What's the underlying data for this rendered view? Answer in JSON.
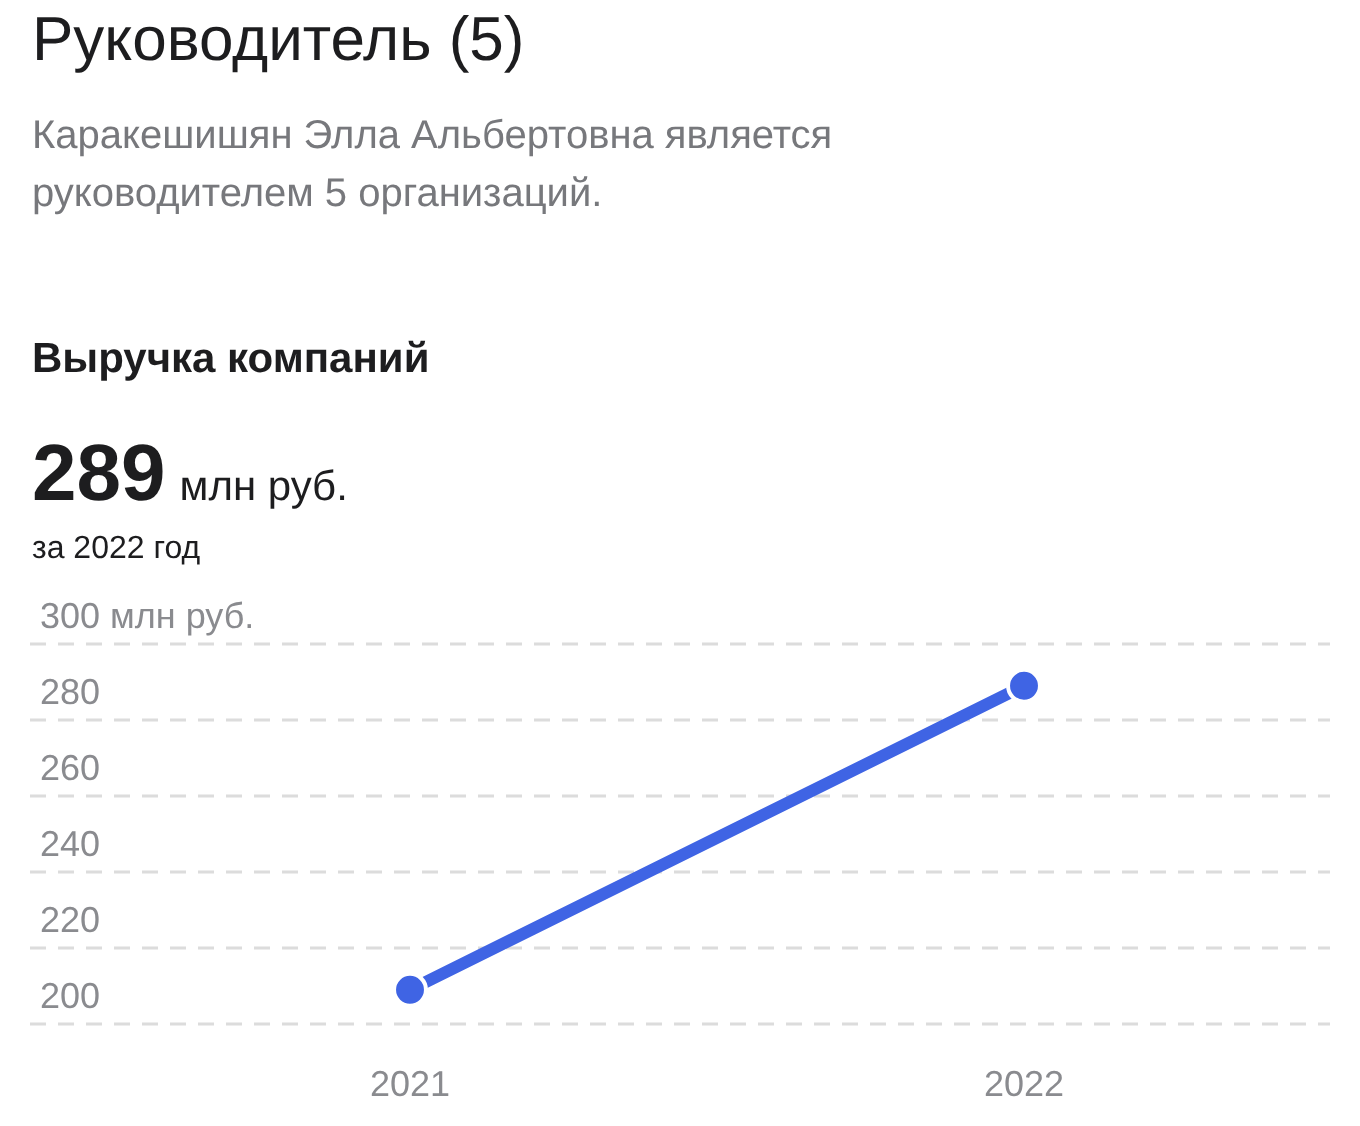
{
  "chart_data": {
    "type": "line",
    "title": "Руководитель (5)",
    "subtitle": "Каракешишян Элла Альбертовна является руководителем 5 организаций.",
    "annotations": [
      "Выручка компаний",
      "289",
      "млн руб.",
      "за 2022 год"
    ],
    "categories": [
      "2021",
      "2022"
    ],
    "series": [
      {
        "color": "#3f64e4",
        "values": [
          209,
          289
        ]
      }
    ],
    "ylim": [
      200,
      300
    ],
    "yticks": [
      200,
      220,
      240,
      260,
      {
        "value": 280,
        "label": "280"
      },
      {
        "value": 300,
        "label": "300 млн руб."
      }
    ],
    "grid": "y",
    "marker": "circle",
    "line_style": "solid"
  }
}
